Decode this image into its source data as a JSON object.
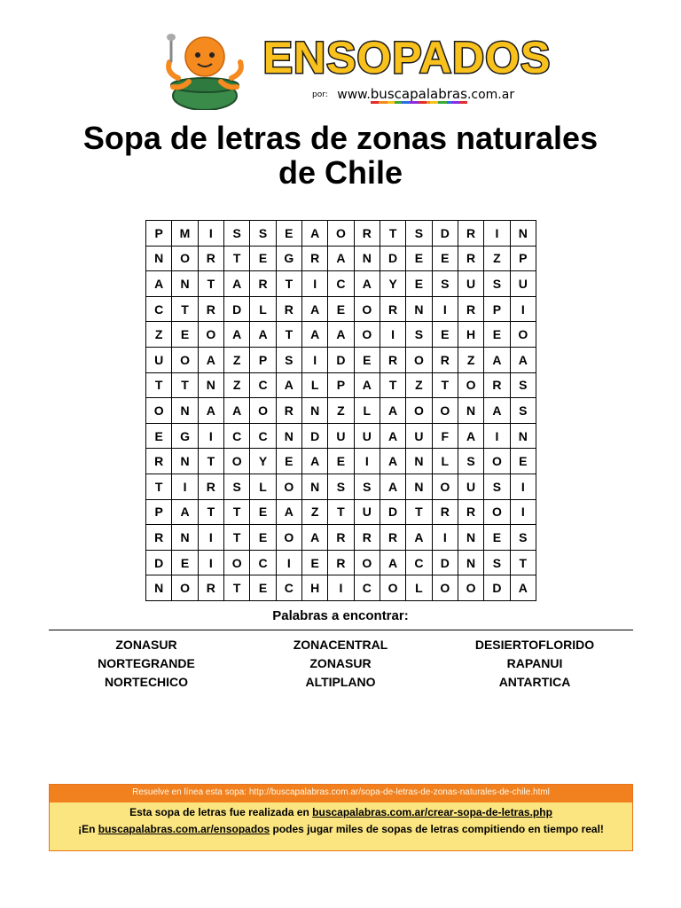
{
  "header": {
    "logo_text": "ENSOPADOS",
    "byline_prefix": "por:",
    "byline_www": "www.",
    "byline_domain_letters": [
      "b",
      "u",
      "s",
      "c",
      "a",
      "p",
      "a",
      "l",
      "a",
      "b",
      "r",
      "a",
      "s"
    ],
    "byline_suffix": ".com.ar",
    "colors": {
      "logo_fill": "#f9c11c",
      "logo_outline": "#1b1b1b",
      "mascot_orange": "#f58a1f",
      "pot_green": "#3a8a4a",
      "domain_underline": [
        "#e22b2b",
        "#f58a1f",
        "#f9c11c",
        "#3aa83a",
        "#2b6ee2",
        "#8a2be2"
      ]
    }
  },
  "title": {
    "line1": "Sopa de letras de zonas naturales",
    "line2": "de Chile"
  },
  "grid": {
    "rows": [
      [
        "P",
        "M",
        "I",
        "S",
        "S",
        "E",
        "A",
        "O",
        "R",
        "T",
        "S",
        "D",
        "R",
        "I",
        "N"
      ],
      [
        "N",
        "O",
        "R",
        "T",
        "E",
        "G",
        "R",
        "A",
        "N",
        "D",
        "E",
        "E",
        "R",
        "Z",
        "P"
      ],
      [
        "A",
        "N",
        "T",
        "A",
        "R",
        "T",
        "I",
        "C",
        "A",
        "Y",
        "E",
        "S",
        "U",
        "S",
        "U"
      ],
      [
        "C",
        "T",
        "R",
        "D",
        "L",
        "R",
        "A",
        "E",
        "O",
        "R",
        "N",
        "I",
        "R",
        "P",
        "I"
      ],
      [
        "Z",
        "E",
        "O",
        "A",
        "A",
        "T",
        "A",
        "A",
        "O",
        "I",
        "S",
        "E",
        "H",
        "E",
        "O"
      ],
      [
        "U",
        "O",
        "A",
        "Z",
        "P",
        "S",
        "I",
        "D",
        "E",
        "R",
        "O",
        "R",
        "Z",
        "A",
        "A"
      ],
      [
        "T",
        "T",
        "N",
        "Z",
        "C",
        "A",
        "L",
        "P",
        "A",
        "T",
        "Z",
        "T",
        "O",
        "R",
        "S"
      ],
      [
        "O",
        "N",
        "A",
        "A",
        "O",
        "R",
        "N",
        "Z",
        "L",
        "A",
        "O",
        "O",
        "N",
        "A",
        "S"
      ],
      [
        "E",
        "G",
        "I",
        "C",
        "C",
        "N",
        "D",
        "U",
        "U",
        "A",
        "U",
        "F",
        "A",
        "I",
        "N"
      ],
      [
        "R",
        "N",
        "T",
        "O",
        "Y",
        "E",
        "A",
        "E",
        "I",
        "A",
        "N",
        "L",
        "S",
        "O",
        "E"
      ],
      [
        "T",
        "I",
        "R",
        "S",
        "L",
        "O",
        "N",
        "S",
        "S",
        "A",
        "N",
        "O",
        "U",
        "S",
        "I"
      ],
      [
        "P",
        "A",
        "T",
        "T",
        "E",
        "A",
        "Z",
        "T",
        "U",
        "D",
        "T",
        "R",
        "R",
        "O",
        "I"
      ],
      [
        "R",
        "N",
        "I",
        "T",
        "E",
        "O",
        "A",
        "R",
        "R",
        "R",
        "A",
        "I",
        "N",
        "E",
        "S"
      ],
      [
        "D",
        "E",
        "I",
        "O",
        "C",
        "I",
        "E",
        "R",
        "O",
        "A",
        "C",
        "D",
        "N",
        "S",
        "T"
      ],
      [
        "N",
        "O",
        "R",
        "T",
        "E",
        "C",
        "H",
        "I",
        "C",
        "O",
        "L",
        "O",
        "O",
        "D",
        "A"
      ]
    ]
  },
  "words": {
    "title": "Palabras a encontrar:",
    "columns": [
      [
        "ZONASUR",
        "NORTEGRANDE",
        "NORTECHICO"
      ],
      [
        "ZONACENTRAL",
        "ZONASUR",
        "ALTIPLANO"
      ],
      [
        "DESIERTOFLORIDO",
        "RAPANUI",
        "ANTARTICA"
      ]
    ]
  },
  "footer": {
    "top_text": "Resuelve en línea esta sopa: http://buscapalabras.com.ar/sopa-de-letras-de-zonas-naturales-de-chile.html",
    "line1_prefix": "Esta sopa de letras fue realizada en ",
    "line1_link": "buscapalabras.com.ar/crear-sopa-de-letras.php",
    "line2_prefix": "¡En ",
    "line2_link": "buscapalabras.com.ar/ensopados",
    "line2_suffix": " podes jugar miles de sopas de letras compitiendo en tiempo real!",
    "colors": {
      "bar": "#f1801f",
      "panel": "#fbe580"
    }
  }
}
